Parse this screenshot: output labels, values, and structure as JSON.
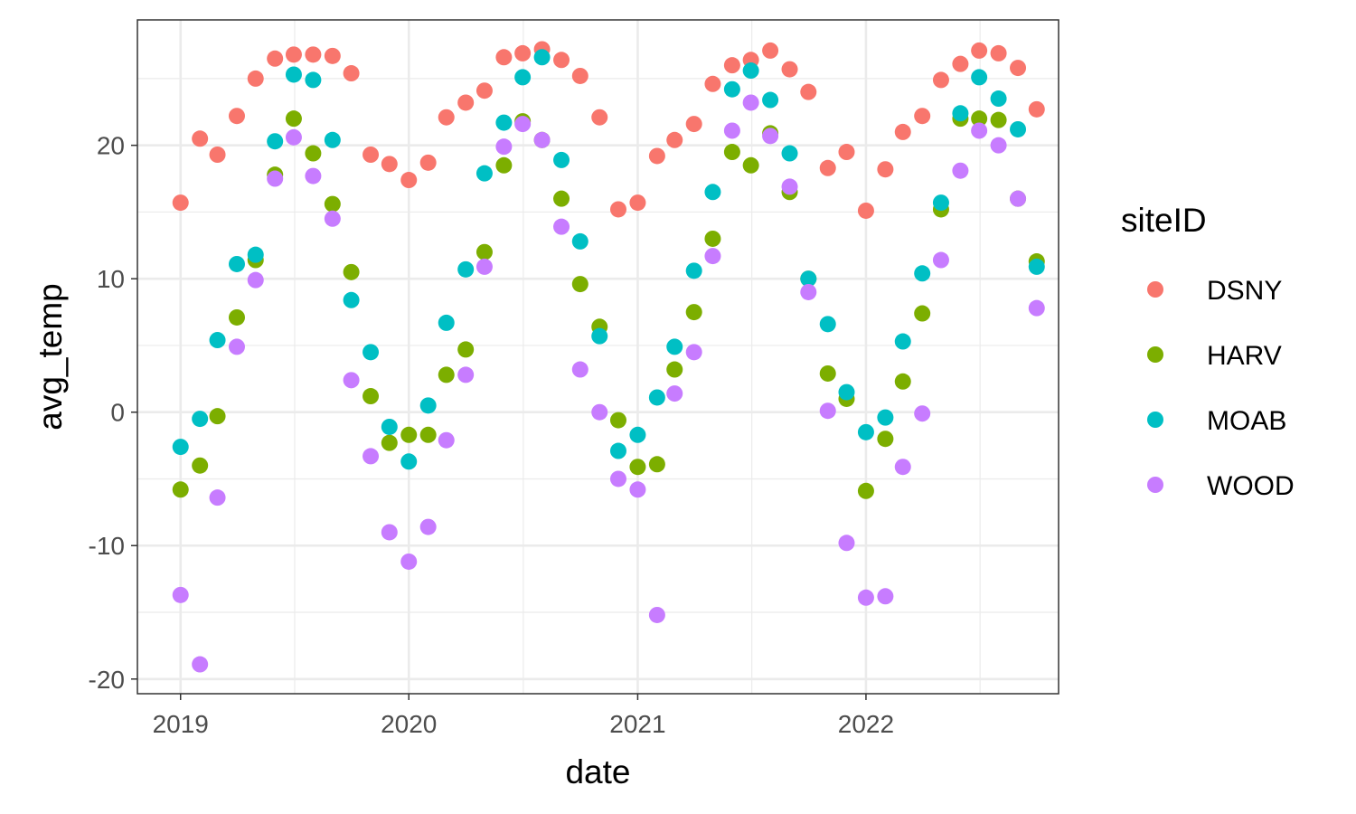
{
  "chart_data": {
    "type": "scatter",
    "xlabel": "date",
    "ylabel": "avg_temp",
    "legend_title": "siteID",
    "legend_position": "right",
    "grid": true,
    "xlim": [
      "2018-10-24",
      "2022-11-05"
    ],
    "ylim": [
      -21.1,
      29.4
    ],
    "x_ticks": [
      {
        "value": "2019-01-01",
        "label": "2019"
      },
      {
        "value": "2020-01-01",
        "label": "2020"
      },
      {
        "value": "2021-01-01",
        "label": "2021"
      },
      {
        "value": "2022-01-01",
        "label": "2022"
      }
    ],
    "y_ticks": [
      {
        "value": -20,
        "label": "-20"
      },
      {
        "value": -10,
        "label": "-10"
      },
      {
        "value": 0,
        "label": "0"
      },
      {
        "value": 10,
        "label": "10"
      },
      {
        "value": 20,
        "label": "20"
      }
    ],
    "x": [
      "2019-01-01",
      "2019-02-01",
      "2019-03-01",
      "2019-04-01",
      "2019-05-01",
      "2019-06-01",
      "2019-07-01",
      "2019-08-01",
      "2019-09-01",
      "2019-10-01",
      "2019-11-01",
      "2019-12-01",
      "2020-01-01",
      "2020-02-01",
      "2020-03-01",
      "2020-04-01",
      "2020-05-01",
      "2020-06-01",
      "2020-07-01",
      "2020-08-01",
      "2020-09-01",
      "2020-10-01",
      "2020-11-01",
      "2020-12-01",
      "2021-01-01",
      "2021-02-01",
      "2021-03-01",
      "2021-04-01",
      "2021-05-01",
      "2021-06-01",
      "2021-07-01",
      "2021-08-01",
      "2021-09-01",
      "2021-10-01",
      "2021-11-01",
      "2021-12-01",
      "2022-01-01",
      "2022-02-01",
      "2022-03-01",
      "2022-04-01",
      "2022-05-01",
      "2022-06-01",
      "2022-07-01",
      "2022-08-01",
      "2022-09-01",
      "2022-10-01"
    ],
    "series": [
      {
        "name": "DSNY",
        "color": "#F8766D",
        "values": [
          15.7,
          20.5,
          19.3,
          22.2,
          25.0,
          26.5,
          26.8,
          26.8,
          26.7,
          25.4,
          19.3,
          18.6,
          17.4,
          18.7,
          22.1,
          23.2,
          24.1,
          26.6,
          26.9,
          27.2,
          26.4,
          25.2,
          22.1,
          15.2,
          15.7,
          19.2,
          20.4,
          21.6,
          24.6,
          26.0,
          26.4,
          27.1,
          25.7,
          24.0,
          18.3,
          19.5,
          15.1,
          18.2,
          21.0,
          22.2,
          24.9,
          26.1,
          27.1,
          26.9,
          25.8,
          22.7
        ]
      },
      {
        "name": "HARV",
        "color": "#7CAE00",
        "values": [
          -5.8,
          -4.0,
          -0.3,
          7.1,
          11.4,
          17.8,
          22.0,
          19.4,
          15.6,
          10.5,
          1.2,
          -2.3,
          -1.7,
          -1.7,
          2.8,
          4.7,
          12.0,
          18.5,
          21.8,
          20.4,
          16.0,
          9.6,
          6.4,
          -0.6,
          -4.1,
          -3.9,
          3.2,
          7.5,
          13.0,
          19.5,
          18.5,
          20.9,
          16.5,
          10.0,
          2.9,
          1.0,
          -5.9,
          -2.0,
          2.3,
          7.4,
          15.2,
          22.0,
          22.0,
          21.9,
          16.0,
          11.3
        ]
      },
      {
        "name": "MOAB",
        "color": "#00BFC4",
        "values": [
          -2.6,
          -0.5,
          5.4,
          11.1,
          11.8,
          20.3,
          25.3,
          24.9,
          20.4,
          8.4,
          4.5,
          -1.1,
          -3.7,
          0.5,
          6.7,
          10.7,
          17.9,
          21.7,
          25.1,
          26.6,
          18.9,
          12.8,
          5.7,
          -2.9,
          -1.7,
          1.1,
          4.9,
          10.6,
          16.5,
          24.2,
          25.6,
          23.4,
          19.4,
          10.0,
          6.6,
          1.5,
          -1.5,
          -0.4,
          5.3,
          10.4,
          15.7,
          22.4,
          25.1,
          23.5,
          21.2,
          10.9
        ]
      },
      {
        "name": "WOOD",
        "color": "#C77CFF",
        "values": [
          -13.7,
          -18.9,
          -6.4,
          4.9,
          9.9,
          17.5,
          20.6,
          17.7,
          14.5,
          2.4,
          -3.3,
          -9.0,
          -11.2,
          -8.6,
          -2.1,
          2.8,
          10.9,
          19.9,
          21.6,
          20.4,
          13.9,
          3.2,
          0.0,
          -5.0,
          -5.8,
          -15.2,
          1.4,
          4.5,
          11.7,
          21.1,
          23.2,
          20.7,
          16.9,
          9.0,
          0.1,
          -9.8,
          -13.9,
          -13.8,
          -4.1,
          -0.1,
          11.4,
          18.1,
          21.1,
          20.0,
          16.0,
          7.8
        ]
      }
    ]
  }
}
